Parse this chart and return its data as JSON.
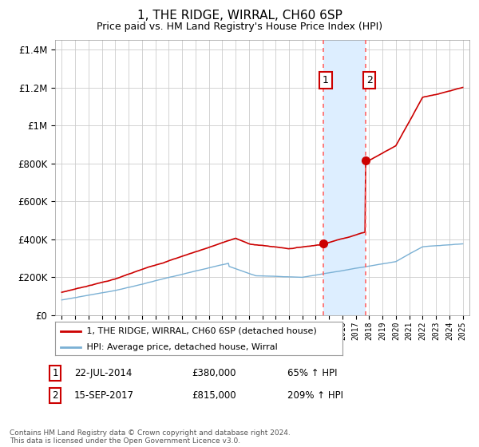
{
  "title": "1, THE RIDGE, WIRRAL, CH60 6SP",
  "subtitle": "Price paid vs. HM Land Registry's House Price Index (HPI)",
  "footer": "Contains HM Land Registry data © Crown copyright and database right 2024.\nThis data is licensed under the Open Government Licence v3.0.",
  "legend_line1": "1, THE RIDGE, WIRRAL, CH60 6SP (detached house)",
  "legend_line2": "HPI: Average price, detached house, Wirral",
  "sale1_label": "1",
  "sale1_date": "22-JUL-2014",
  "sale1_price": "£380,000",
  "sale1_hpi": "65% ↑ HPI",
  "sale2_label": "2",
  "sale2_date": "15-SEP-2017",
  "sale2_price": "£815,000",
  "sale2_hpi": "209% ↑ HPI",
  "sale1_year": 2014.55,
  "sale2_year": 2017.71,
  "sale1_value": 380000,
  "sale2_value": 815000,
  "ylim": [
    0,
    1450000
  ],
  "xlim": [
    1994.5,
    2025.5
  ],
  "bg_color": "#ffffff",
  "grid_color": "#cccccc",
  "red_color": "#cc0000",
  "blue_color": "#7ab0d4",
  "shade_color": "#ddeeff",
  "vline_color": "#ff6666",
  "label_box_color": "#cc0000",
  "title_fontsize": 11,
  "subtitle_fontsize": 9
}
